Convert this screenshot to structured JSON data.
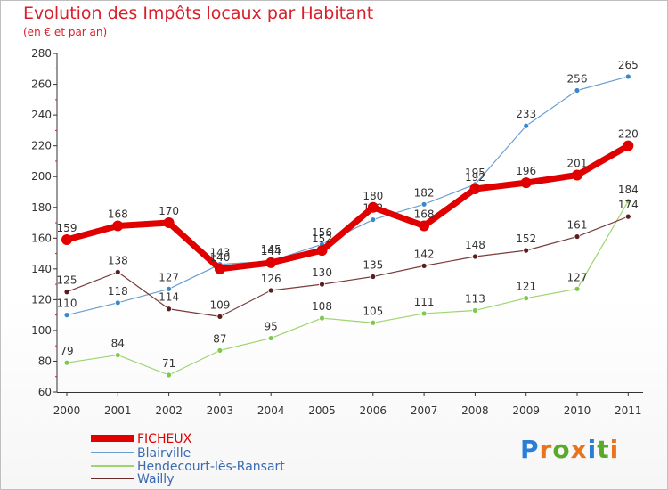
{
  "title": "Evolution des Impôts locaux par Habitant",
  "subtitle": "(en € et par an)",
  "logo": {
    "letters": [
      "P",
      "r",
      "o",
      "x",
      "i",
      "t",
      "i"
    ],
    "colors": [
      "#2a7fd4",
      "#e8741e",
      "#5aaa2a",
      "#e8741e",
      "#2a7fd4",
      "#5aaa2a",
      "#e8741e"
    ]
  },
  "chart_data": {
    "type": "line",
    "x": [
      "2000",
      "2001",
      "2002",
      "2003",
      "2004",
      "2005",
      "2006",
      "2007",
      "2008",
      "2009",
      "2010",
      "2011"
    ],
    "ylim": [
      60,
      280
    ],
    "yticks": [
      60,
      80,
      100,
      120,
      140,
      160,
      180,
      200,
      220,
      240,
      260,
      280
    ],
    "grid": false,
    "legend_position": "bottom-left",
    "series": [
      {
        "name": "Blairville",
        "color": "#6a9fd0",
        "values": [
          110,
          118,
          127,
          143,
          145,
          156,
          172,
          182,
          195,
          233,
          256,
          265
        ],
        "labels": [
          "110",
          "118",
          "127",
          "143",
          "145",
          "156",
          "172",
          "182",
          "195",
          "233",
          "256",
          "265"
        ]
      },
      {
        "name": "Hendecourt-lès-Ransart",
        "color": "#9ed46e",
        "values": [
          79,
          84,
          71,
          87,
          95,
          108,
          105,
          111,
          113,
          121,
          127,
          184
        ],
        "labels": [
          "79",
          "84",
          "71",
          "87",
          "95",
          "108",
          "105",
          "111",
          "113",
          "121",
          "127",
          "184"
        ]
      },
      {
        "name": "Wailly",
        "color": "#6e2a2a",
        "values": [
          125,
          138,
          114,
          109,
          126,
          130,
          135,
          142,
          148,
          152,
          161,
          174
        ],
        "labels": [
          "125",
          "138",
          "114",
          "109",
          "126",
          "130",
          "135",
          "142",
          "148",
          "152",
          "161",
          "174"
        ]
      },
      {
        "name": "FICHEUX",
        "color": "#e00000",
        "values": [
          159,
          168,
          170,
          140,
          144,
          152,
          180,
          168,
          192,
          196,
          201,
          220
        ],
        "labels": [
          "159",
          "168",
          "170",
          "140",
          "144",
          "152",
          "180",
          "168",
          "192",
          "196",
          "201",
          "220"
        ]
      }
    ],
    "legend": [
      {
        "name": "FICHEUX",
        "color": "#e00000"
      },
      {
        "name": "Blairville",
        "color": "#6a9fd0"
      },
      {
        "name": "Hendecourt-lès-Ransart",
        "color": "#9ed46e"
      },
      {
        "name": "Wailly",
        "color": "#6e2a2a"
      }
    ]
  }
}
